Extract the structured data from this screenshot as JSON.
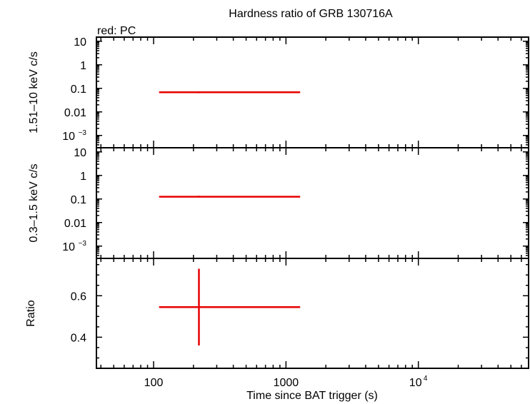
{
  "title": "Hardness ratio of GRB 130716A",
  "legend_label": "red: PC",
  "colors": {
    "series": "#e80000",
    "axes": "#000000"
  },
  "chart_data": [
    {
      "panel": "hard",
      "type": "scatter",
      "ylabel": "1.51–10 keV c/s",
      "yscale": "log",
      "ylim": [
        0.0003,
        15
      ],
      "yticks": [
        {
          "value": 10,
          "label": "10"
        },
        {
          "value": 1,
          "label": "1"
        },
        {
          "value": 0.1,
          "label": "0.1"
        },
        {
          "value": 0.01,
          "label": "0.01"
        },
        {
          "value": 0.001,
          "label": "10",
          "sup": "−3"
        }
      ],
      "series": [
        {
          "color": "#e80000",
          "points": [
            {
              "x": 220,
              "xlo": 110,
              "xhi": 1280,
              "y": 0.068,
              "ylo": 0.062,
              "yhi": 0.075
            }
          ]
        }
      ]
    },
    {
      "panel": "soft",
      "type": "scatter",
      "ylabel": "0.3–1.5 keV c/s",
      "yscale": "log",
      "ylim": [
        0.0003,
        15
      ],
      "yticks": [
        {
          "value": 10,
          "label": "10"
        },
        {
          "value": 1,
          "label": "1"
        },
        {
          "value": 0.1,
          "label": "0.1"
        },
        {
          "value": 0.01,
          "label": "0.01"
        },
        {
          "value": 0.001,
          "label": "10",
          "sup": "−3"
        }
      ],
      "series": [
        {
          "color": "#e80000",
          "points": [
            {
              "x": 220,
              "xlo": 110,
              "xhi": 1280,
              "y": 0.125,
              "ylo": 0.115,
              "yhi": 0.137
            }
          ]
        }
      ]
    },
    {
      "panel": "ratio",
      "type": "scatter",
      "ylabel": "Ratio",
      "yscale": "linear",
      "ylim": [
        0.25,
        0.78
      ],
      "yticks": [
        {
          "value": 0.6,
          "label": "0.6"
        },
        {
          "value": 0.4,
          "label": "0.4"
        }
      ],
      "series": [
        {
          "color": "#e80000",
          "points": [
            {
              "x": 220,
              "xlo": 110,
              "xhi": 1280,
              "y": 0.545,
              "ylo": 0.36,
              "yhi": 0.73
            }
          ]
        }
      ]
    }
  ],
  "x_axis": {
    "label": "Time since BAT trigger (s)",
    "scale": "log",
    "xlim": [
      37,
      68000
    ],
    "ticks": [
      {
        "value": 100,
        "label": "100"
      },
      {
        "value": 1000,
        "label": "1000"
      },
      {
        "value": 10000,
        "label": "10",
        "sup": "4"
      }
    ]
  }
}
